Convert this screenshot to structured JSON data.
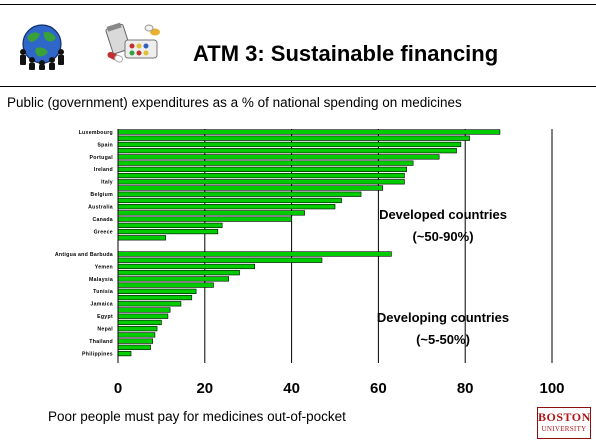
{
  "slide": {
    "title": "ATM 3: Sustainable financing",
    "subtitle": "Public (government) expenditures as a % of national spending on medicines",
    "footer": "Poor people must pay for medicines out-of-pocket",
    "logo_line1": "BOSTON",
    "logo_line2": "UNIVERSITY"
  },
  "colors": {
    "bar": "#00cc00",
    "logo": "#b01818"
  },
  "icons": [
    "globe-people-icon",
    "medicine-pills-icon"
  ],
  "chart_data": {
    "type": "bar",
    "orientation": "horizontal",
    "xlim": [
      0,
      100
    ],
    "xticks": [
      "0",
      "20",
      "40",
      "60",
      "80",
      "100"
    ],
    "grid": "vertical",
    "categories": [
      "Luxembourg",
      "",
      "Spain",
      "",
      "Portugal",
      "",
      "Ireland",
      "",
      "Italy",
      "",
      "Belgium",
      "",
      "Australia",
      "",
      "Canada",
      "",
      "Greece",
      "",
      "Antigua and Barbuda",
      "",
      "Yemen",
      "",
      "Malaysia",
      "",
      "Tunisia",
      "",
      "Jamaica",
      "",
      "Egypt",
      "",
      "Nepal",
      "",
      "Thailand",
      "",
      "Philippines",
      ""
    ],
    "values": [
      88,
      81,
      79,
      78,
      74,
      68,
      66.5,
      66,
      66,
      61,
      56,
      51.5,
      50,
      43,
      40,
      24,
      23,
      11,
      63,
      47,
      31.5,
      28,
      25.5,
      22,
      18,
      17,
      14.5,
      12,
      11.5,
      10,
      9,
      8.5,
      8,
      7.5,
      3,
      0
    ],
    "annotations": [
      {
        "line1": "Developed countries",
        "line2": "(~50-90%)"
      },
      {
        "line1": "Developing countries",
        "line2": "(~5-50%)"
      }
    ]
  }
}
